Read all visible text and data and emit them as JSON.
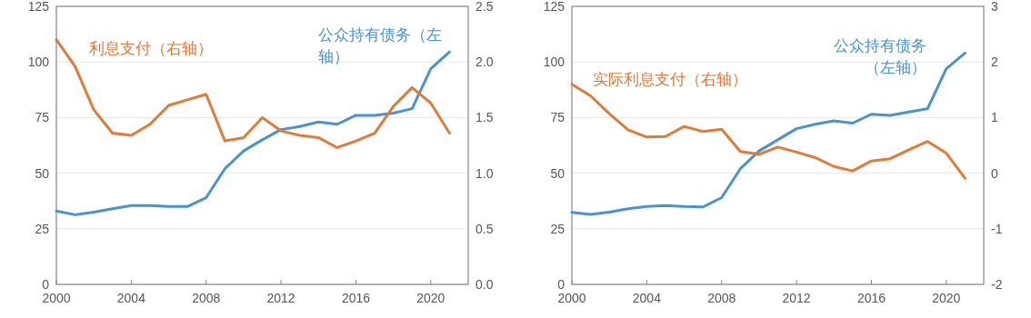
{
  "chart_data": [
    {
      "type": "line",
      "x": [
        2000,
        2001,
        2002,
        2003,
        2004,
        2005,
        2006,
        2007,
        2008,
        2009,
        2010,
        2011,
        2012,
        2013,
        2014,
        2015,
        2016,
        2017,
        2018,
        2019,
        2020,
        2021
      ],
      "xlim": [
        2000,
        2022
      ],
      "xticks": [
        2000,
        2004,
        2008,
        2012,
        2016,
        2020
      ],
      "ylim": [
        0,
        125
      ],
      "yticks": [
        0,
        25,
        50,
        75,
        100,
        125
      ],
      "y2lim": [
        0,
        2.5
      ],
      "y2ticks": [
        {
          "value": 0,
          "label": "0.0"
        },
        {
          "value": 0.5,
          "label": "0.5"
        },
        {
          "value": 1,
          "label": "1.0"
        },
        {
          "value": 1.5,
          "label": "1.5"
        },
        {
          "value": 2,
          "label": "2.0"
        },
        {
          "value": 2.5,
          "label": "2.5"
        }
      ],
      "grid": "y",
      "series": [
        {
          "name": "公众持有债务（左轴）",
          "color": "#4a93cc",
          "values": [
            33,
            31.3,
            32.5,
            34,
            35.4,
            35.4,
            35,
            35,
            39,
            52,
            60,
            65,
            69.6,
            71,
            73,
            72,
            76,
            76,
            77,
            79,
            97,
            104.5
          ]
        },
        {
          "name": "利息支付（右轴）",
          "color": "#e07b39",
          "axis": "y2",
          "values": [
            2.2,
            1.96,
            1.57,
            1.36,
            1.34,
            1.44,
            1.61,
            1.66,
            1.71,
            1.29,
            1.32,
            1.5,
            1.38,
            1.34,
            1.32,
            1.23,
            1.29,
            1.36,
            1.6,
            1.77,
            1.63,
            1.36
          ]
        }
      ]
    },
    {
      "type": "line",
      "x": [
        2000,
        2001,
        2002,
        2003,
        2004,
        2005,
        2006,
        2007,
        2008,
        2009,
        2010,
        2011,
        2012,
        2013,
        2014,
        2015,
        2016,
        2017,
        2018,
        2019,
        2020,
        2021
      ],
      "xlim": [
        2000,
        2022
      ],
      "xticks": [
        2000,
        2004,
        2008,
        2012,
        2016,
        2020
      ],
      "ylim": [
        0,
        125
      ],
      "yticks": [
        0,
        25,
        50,
        75,
        100,
        125
      ],
      "y2lim": [
        -2,
        3
      ],
      "y2ticks": [
        -2,
        -1,
        0,
        1,
        2,
        3
      ],
      "grid": "y",
      "series": [
        {
          "name": "公众持有债务（左轴）",
          "color": "#4a93cc",
          "values": [
            32.4,
            31.5,
            32.5,
            34,
            35,
            35.4,
            35,
            34.8,
            39,
            52,
            60,
            65,
            70,
            72,
            73.5,
            72.5,
            76.5,
            76,
            77.5,
            79,
            97,
            104
          ]
        },
        {
          "name": "实际利息支付（右轴）",
          "color": "#e07b39",
          "axis": "y2",
          "values": [
            1.6,
            1.39,
            1.07,
            0.78,
            0.65,
            0.66,
            0.84,
            0.75,
            0.79,
            0.39,
            0.34,
            0.47,
            0.38,
            0.28,
            0.12,
            0.04,
            0.22,
            0.26,
            0.42,
            0.57,
            0.36,
            -0.09
          ]
        }
      ]
    }
  ]
}
